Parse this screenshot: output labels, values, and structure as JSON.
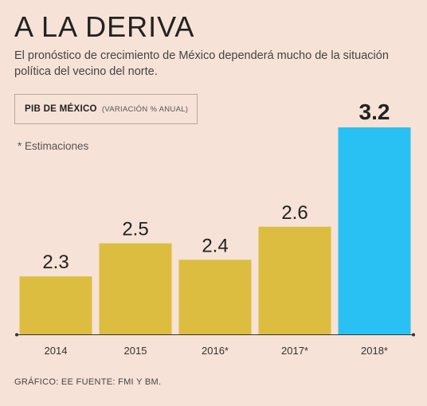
{
  "header": {
    "title": "A LA DERIVA",
    "subtitle": "El pronóstico de crecimiento de México dependerá mucho de la situación política del vecino del norte."
  },
  "legend": {
    "label": "PIB DE MÉXICO",
    "unit": "(VARIACIÓN % ANUAL)"
  },
  "note": "* Estimaciones",
  "source": "GRÁFICO: EE FUENTE: FMI Y BM.",
  "colors": {
    "bar": "#dcbd40",
    "highlight": "#29c1f4",
    "axis": "#333333",
    "background": "#f6e2d6"
  },
  "chart_data": {
    "type": "bar",
    "categories": [
      "2014",
      "2015",
      "2016*",
      "2017*",
      "2018*"
    ],
    "values": [
      2.3,
      2.5,
      2.4,
      2.6,
      3.2
    ],
    "value_labels": [
      "2.3",
      "2.5",
      "2.4",
      "2.6",
      "3.2"
    ],
    "highlight_index": 4,
    "ylim": [
      1.95,
      3.2
    ],
    "grid": false,
    "legend_position": "top-left"
  }
}
